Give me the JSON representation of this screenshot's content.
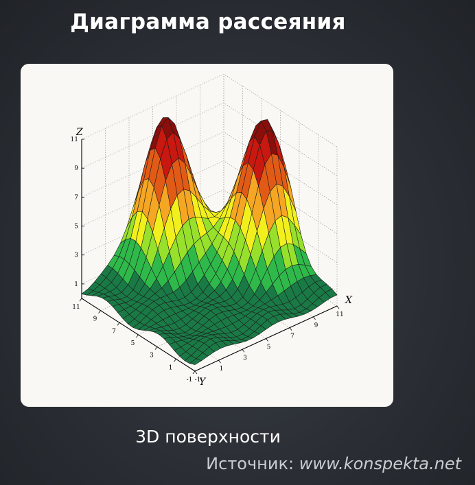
{
  "slide": {
    "title": "Диаграмма рассеяния",
    "caption": "3D поверхности",
    "source_label": "Источник:",
    "source_url": "www.konspekta.net"
  },
  "colors": {
    "background": "#2b2f35",
    "card": "#f9f8f4",
    "surface_scale": [
      "#1a7a46",
      "#2fb94a",
      "#97e02c",
      "#f2f01c",
      "#f5a623",
      "#e25b16",
      "#c8180f",
      "#8a0f0b"
    ]
  },
  "chart_data": {
    "type": "surface3d",
    "title": "",
    "xlabel": "X",
    "ylabel": "Y",
    "zlabel": "Z",
    "x_ticks": [
      "-1",
      "1",
      "3",
      "5",
      "7",
      "9",
      "11"
    ],
    "y_ticks": [
      "-1",
      "1",
      "3",
      "5",
      "7",
      "9",
      "11"
    ],
    "z_ticks": [
      "1",
      "3",
      "5",
      "7",
      "9",
      "11"
    ],
    "xlim": [
      -1,
      11
    ],
    "ylim": [
      -1,
      11
    ],
    "zlim": [
      0,
      11
    ],
    "grid": true,
    "colormap": "green-yellow-red",
    "peaks": [
      {
        "x": 5,
        "y": 9.5,
        "z": 11
      },
      {
        "x": 9.5,
        "y": 5,
        "z": 11
      }
    ]
  }
}
